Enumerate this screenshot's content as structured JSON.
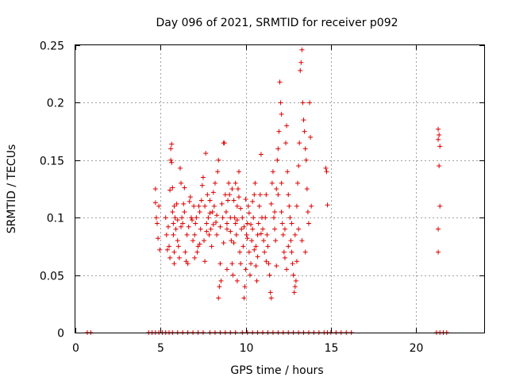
{
  "chart_data": {
    "type": "scatter",
    "title": "Day 096 of 2021, SRMTID for receiver p092",
    "xlabel": "GPS time / hours",
    "ylabel": "SRMTID / TECUs",
    "xlim": [
      0,
      24
    ],
    "ylim": [
      0,
      0.25
    ],
    "x_ticks": [
      "0",
      "5",
      "10",
      "15",
      "20"
    ],
    "y_ticks": [
      "0",
      "0.05",
      "0.1",
      "0.15",
      "0.2",
      "0.25"
    ],
    "grid": true,
    "marker": "+",
    "color": "#dd0000",
    "series": [
      {
        "name": "SRMTID",
        "points": [
          [
            4.7,
            0.125
          ],
          [
            4.7,
            0.113
          ],
          [
            4.75,
            0.1
          ],
          [
            4.8,
            0.095
          ],
          [
            4.85,
            0.082
          ],
          [
            4.9,
            0.11
          ],
          [
            4.95,
            0.072
          ],
          [
            5.3,
            0.1
          ],
          [
            5.35,
            0.085
          ],
          [
            5.4,
            0.072
          ],
          [
            5.45,
            0.092
          ],
          [
            5.5,
            0.075
          ],
          [
            5.55,
            0.065
          ],
          [
            5.55,
            0.124
          ],
          [
            5.6,
            0.15
          ],
          [
            5.6,
            0.16
          ],
          [
            5.65,
            0.164
          ],
          [
            5.65,
            0.148
          ],
          [
            5.7,
            0.126
          ],
          [
            5.7,
            0.105
          ],
          [
            5.75,
            0.095
          ],
          [
            5.75,
            0.085
          ],
          [
            5.8,
            0.07
          ],
          [
            5.8,
            0.06
          ],
          [
            5.85,
            0.1
          ],
          [
            5.9,
            0.09
          ],
          [
            5.95,
            0.112
          ],
          [
            6.0,
            0.08
          ],
          [
            6.05,
            0.075
          ],
          [
            6.1,
            0.065
          ],
          [
            6.15,
            0.143
          ],
          [
            6.2,
            0.13
          ],
          [
            6.25,
            0.1
          ],
          [
            6.3,
            0.095
          ],
          [
            6.35,
            0.112
          ],
          [
            6.4,
            0.105
          ],
          [
            6.45,
            0.07
          ],
          [
            6.5,
            0.062
          ],
          [
            6.55,
            0.085
          ],
          [
            6.6,
            0.06
          ],
          [
            6.65,
            0.092
          ],
          [
            6.7,
            0.114
          ],
          [
            6.75,
            0.118
          ],
          [
            6.8,
            0.1
          ],
          [
            6.85,
            0.098
          ],
          [
            6.9,
            0.08
          ],
          [
            6.95,
            0.11
          ],
          [
            7.0,
            0.065
          ],
          [
            7.05,
            0.095
          ],
          [
            7.1,
            0.1
          ],
          [
            7.15,
            0.07
          ],
          [
            7.2,
            0.075
          ],
          [
            7.25,
            0.11
          ],
          [
            7.3,
            0.105
          ],
          [
            7.35,
            0.09
          ],
          [
            7.4,
            0.115
          ],
          [
            7.45,
            0.128
          ],
          [
            7.5,
            0.135
          ],
          [
            7.55,
            0.08
          ],
          [
            7.6,
            0.11
          ],
          [
            7.65,
            0.156
          ],
          [
            7.7,
            0.095
          ],
          [
            7.75,
            0.12
          ],
          [
            7.8,
            0.1
          ],
          [
            7.85,
            0.085
          ],
          [
            7.9,
            0.115
          ],
          [
            7.95,
            0.09
          ],
          [
            8.0,
            0.075
          ],
          [
            8.05,
            0.105
          ],
          [
            8.1,
            0.122
          ],
          [
            8.15,
            0.11
          ],
          [
            8.2,
            0.13
          ],
          [
            8.25,
            0.096
          ],
          [
            8.3,
            0.085
          ],
          [
            8.35,
            0.14
          ],
          [
            8.4,
            0.15
          ],
          [
            8.4,
            0.03
          ],
          [
            8.45,
            0.04
          ],
          [
            8.5,
            0.06
          ],
          [
            8.55,
            0.045
          ],
          [
            8.6,
            0.112
          ],
          [
            8.65,
            0.1
          ],
          [
            8.7,
            0.165
          ],
          [
            8.75,
            0.165
          ],
          [
            8.8,
            0.12
          ],
          [
            8.85,
            0.105
          ],
          [
            8.9,
            0.09
          ],
          [
            8.95,
            0.115
          ],
          [
            9.0,
            0.13
          ],
          [
            9.05,
            0.12
          ],
          [
            9.1,
            0.1
          ],
          [
            9.15,
            0.08
          ],
          [
            9.2,
            0.06
          ],
          [
            9.25,
            0.05
          ],
          [
            9.3,
            0.115
          ],
          [
            9.35,
            0.1
          ],
          [
            9.4,
            0.095
          ],
          [
            9.45,
            0.085
          ],
          [
            9.5,
            0.11
          ],
          [
            9.55,
            0.125
          ],
          [
            9.6,
            0.14
          ],
          [
            9.65,
            0.07
          ],
          [
            9.7,
            0.06
          ],
          [
            9.75,
            0.09
          ],
          [
            9.8,
            0.1
          ],
          [
            9.85,
            0.075
          ],
          [
            9.9,
            0.03
          ],
          [
            9.95,
            0.04
          ],
          [
            10.0,
            0.055
          ],
          [
            10.05,
            0.085
          ],
          [
            10.1,
            0.095
          ],
          [
            10.15,
            0.11
          ],
          [
            10.2,
            0.07
          ],
          [
            10.25,
            0.05
          ],
          [
            10.3,
            0.06
          ],
          [
            10.35,
            0.08
          ],
          [
            10.4,
            0.09
          ],
          [
            10.45,
            0.1
          ],
          [
            10.5,
            0.12
          ],
          [
            10.55,
            0.13
          ],
          [
            10.6,
            0.075
          ],
          [
            10.65,
            0.045
          ],
          [
            10.7,
            0.085
          ],
          [
            10.75,
            0.095
          ],
          [
            10.8,
            0.11
          ],
          [
            10.85,
            0.12
          ],
          [
            10.9,
            0.155
          ],
          [
            10.95,
            0.1
          ],
          [
            11.0,
            0.09
          ],
          [
            11.05,
            0.08
          ],
          [
            11.1,
            0.07
          ],
          [
            11.15,
            0.1
          ],
          [
            11.2,
            0.12
          ],
          [
            11.25,
            0.085
          ],
          [
            11.3,
            0.075
          ],
          [
            11.35,
            0.06
          ],
          [
            11.4,
            0.05
          ],
          [
            11.45,
            0.035
          ],
          [
            11.5,
            0.03
          ],
          [
            11.5,
            0.112
          ],
          [
            11.55,
            0.13
          ],
          [
            11.6,
            0.14
          ],
          [
            11.65,
            0.1
          ],
          [
            11.7,
            0.09
          ],
          [
            11.75,
            0.08
          ],
          [
            11.8,
            0.125
          ],
          [
            11.85,
            0.15
          ],
          [
            11.9,
            0.16
          ],
          [
            11.95,
            0.175
          ],
          [
            12.0,
            0.218
          ],
          [
            12.05,
            0.2
          ],
          [
            12.1,
            0.19
          ],
          [
            12.1,
            0.105
          ],
          [
            12.15,
            0.095
          ],
          [
            12.2,
            0.085
          ],
          [
            12.25,
            0.07
          ],
          [
            12.3,
            0.065
          ],
          [
            12.35,
            0.165
          ],
          [
            12.4,
            0.18
          ],
          [
            12.45,
            0.14
          ],
          [
            12.5,
            0.12
          ],
          [
            12.55,
            0.11
          ],
          [
            12.6,
            0.1
          ],
          [
            12.65,
            0.08
          ],
          [
            12.7,
            0.07
          ],
          [
            12.75,
            0.06
          ],
          [
            12.8,
            0.05
          ],
          [
            12.85,
            0.035
          ],
          [
            12.9,
            0.04
          ],
          [
            12.95,
            0.045
          ],
          [
            13.0,
            0.11
          ],
          [
            13.05,
            0.13
          ],
          [
            13.1,
            0.145
          ],
          [
            13.15,
            0.165
          ],
          [
            13.2,
            0.228
          ],
          [
            13.25,
            0.235
          ],
          [
            13.3,
            0.246
          ],
          [
            13.35,
            0.2
          ],
          [
            13.4,
            0.185
          ],
          [
            13.45,
            0.175
          ],
          [
            13.5,
            0.16
          ],
          [
            13.55,
            0.15
          ],
          [
            13.6,
            0.125
          ],
          [
            13.65,
            0.105
          ],
          [
            13.7,
            0.095
          ],
          [
            13.75,
            0.2
          ],
          [
            13.8,
            0.17
          ],
          [
            13.85,
            0.11
          ],
          [
            14.7,
            0.143
          ],
          [
            14.75,
            0.14
          ],
          [
            14.8,
            0.111
          ],
          [
            21.3,
            0.177
          ],
          [
            21.35,
            0.172
          ],
          [
            21.3,
            0.168
          ],
          [
            21.4,
            0.162
          ],
          [
            21.35,
            0.145
          ],
          [
            21.4,
            0.11
          ],
          [
            21.3,
            0.09
          ],
          [
            21.3,
            0.07
          ],
          [
            8.9,
            0.095
          ],
          [
            9.1,
            0.088
          ],
          [
            9.3,
            0.078
          ],
          [
            9.5,
            0.098
          ],
          [
            9.7,
            0.108
          ],
          [
            9.9,
            0.092
          ],
          [
            10.1,
            0.082
          ],
          [
            10.3,
            0.094
          ],
          [
            10.5,
            0.072
          ],
          [
            10.7,
            0.066
          ],
          [
            10.9,
            0.086
          ],
          [
            8.7,
            0.078
          ],
          [
            8.5,
            0.092
          ],
          [
            8.3,
            0.102
          ],
          [
            8.1,
            0.094
          ],
          [
            7.9,
            0.104
          ],
          [
            7.7,
            0.088
          ],
          [
            12.3,
            0.09
          ],
          [
            12.5,
            0.075
          ],
          [
            12.7,
            0.095
          ],
          [
            12.9,
            0.085
          ],
          [
            13.1,
            0.09
          ],
          [
            13.3,
            0.08
          ],
          [
            13.5,
            0.07
          ],
          [
            11.7,
            0.105
          ],
          [
            11.9,
            0.12
          ],
          [
            12.1,
            0.13
          ],
          [
            9.2,
            0.125
          ],
          [
            9.4,
            0.13
          ],
          [
            9.6,
            0.118
          ],
          [
            10.0,
            0.116
          ],
          [
            10.2,
            0.104
          ],
          [
            10.4,
            0.114
          ],
          [
            6.4,
            0.126
          ],
          [
            6.2,
            0.092
          ],
          [
            6.0,
            0.098
          ],
          [
            5.8,
            0.11
          ],
          [
            7.0,
            0.085
          ],
          [
            7.3,
            0.077
          ],
          [
            7.6,
            0.062
          ],
          [
            8.9,
            0.055
          ],
          [
            9.5,
            0.045
          ],
          [
            10.6,
            0.058
          ],
          [
            11.2,
            0.062
          ],
          [
            11.8,
            0.058
          ],
          [
            12.4,
            0.055
          ],
          [
            13.0,
            0.062
          ]
        ]
      }
    ],
    "baseline_hours": [
      0.7,
      0.9,
      4.3,
      4.5,
      4.7,
      4.9,
      5.1,
      5.3,
      5.5,
      5.7,
      6.0,
      6.3,
      6.6,
      6.9,
      7.2,
      7.5,
      7.9,
      8.2,
      8.5,
      8.8,
      9.1,
      9.4,
      9.8,
      10.1,
      10.4,
      10.7,
      11.0,
      11.3,
      11.6,
      11.9,
      12.2,
      12.5,
      12.8,
      13.1,
      13.4,
      13.7,
      14.0,
      14.3,
      14.6,
      14.8,
      15.0,
      15.3,
      15.6,
      15.9,
      16.2,
      21.2,
      21.4,
      21.6,
      21.8
    ]
  }
}
